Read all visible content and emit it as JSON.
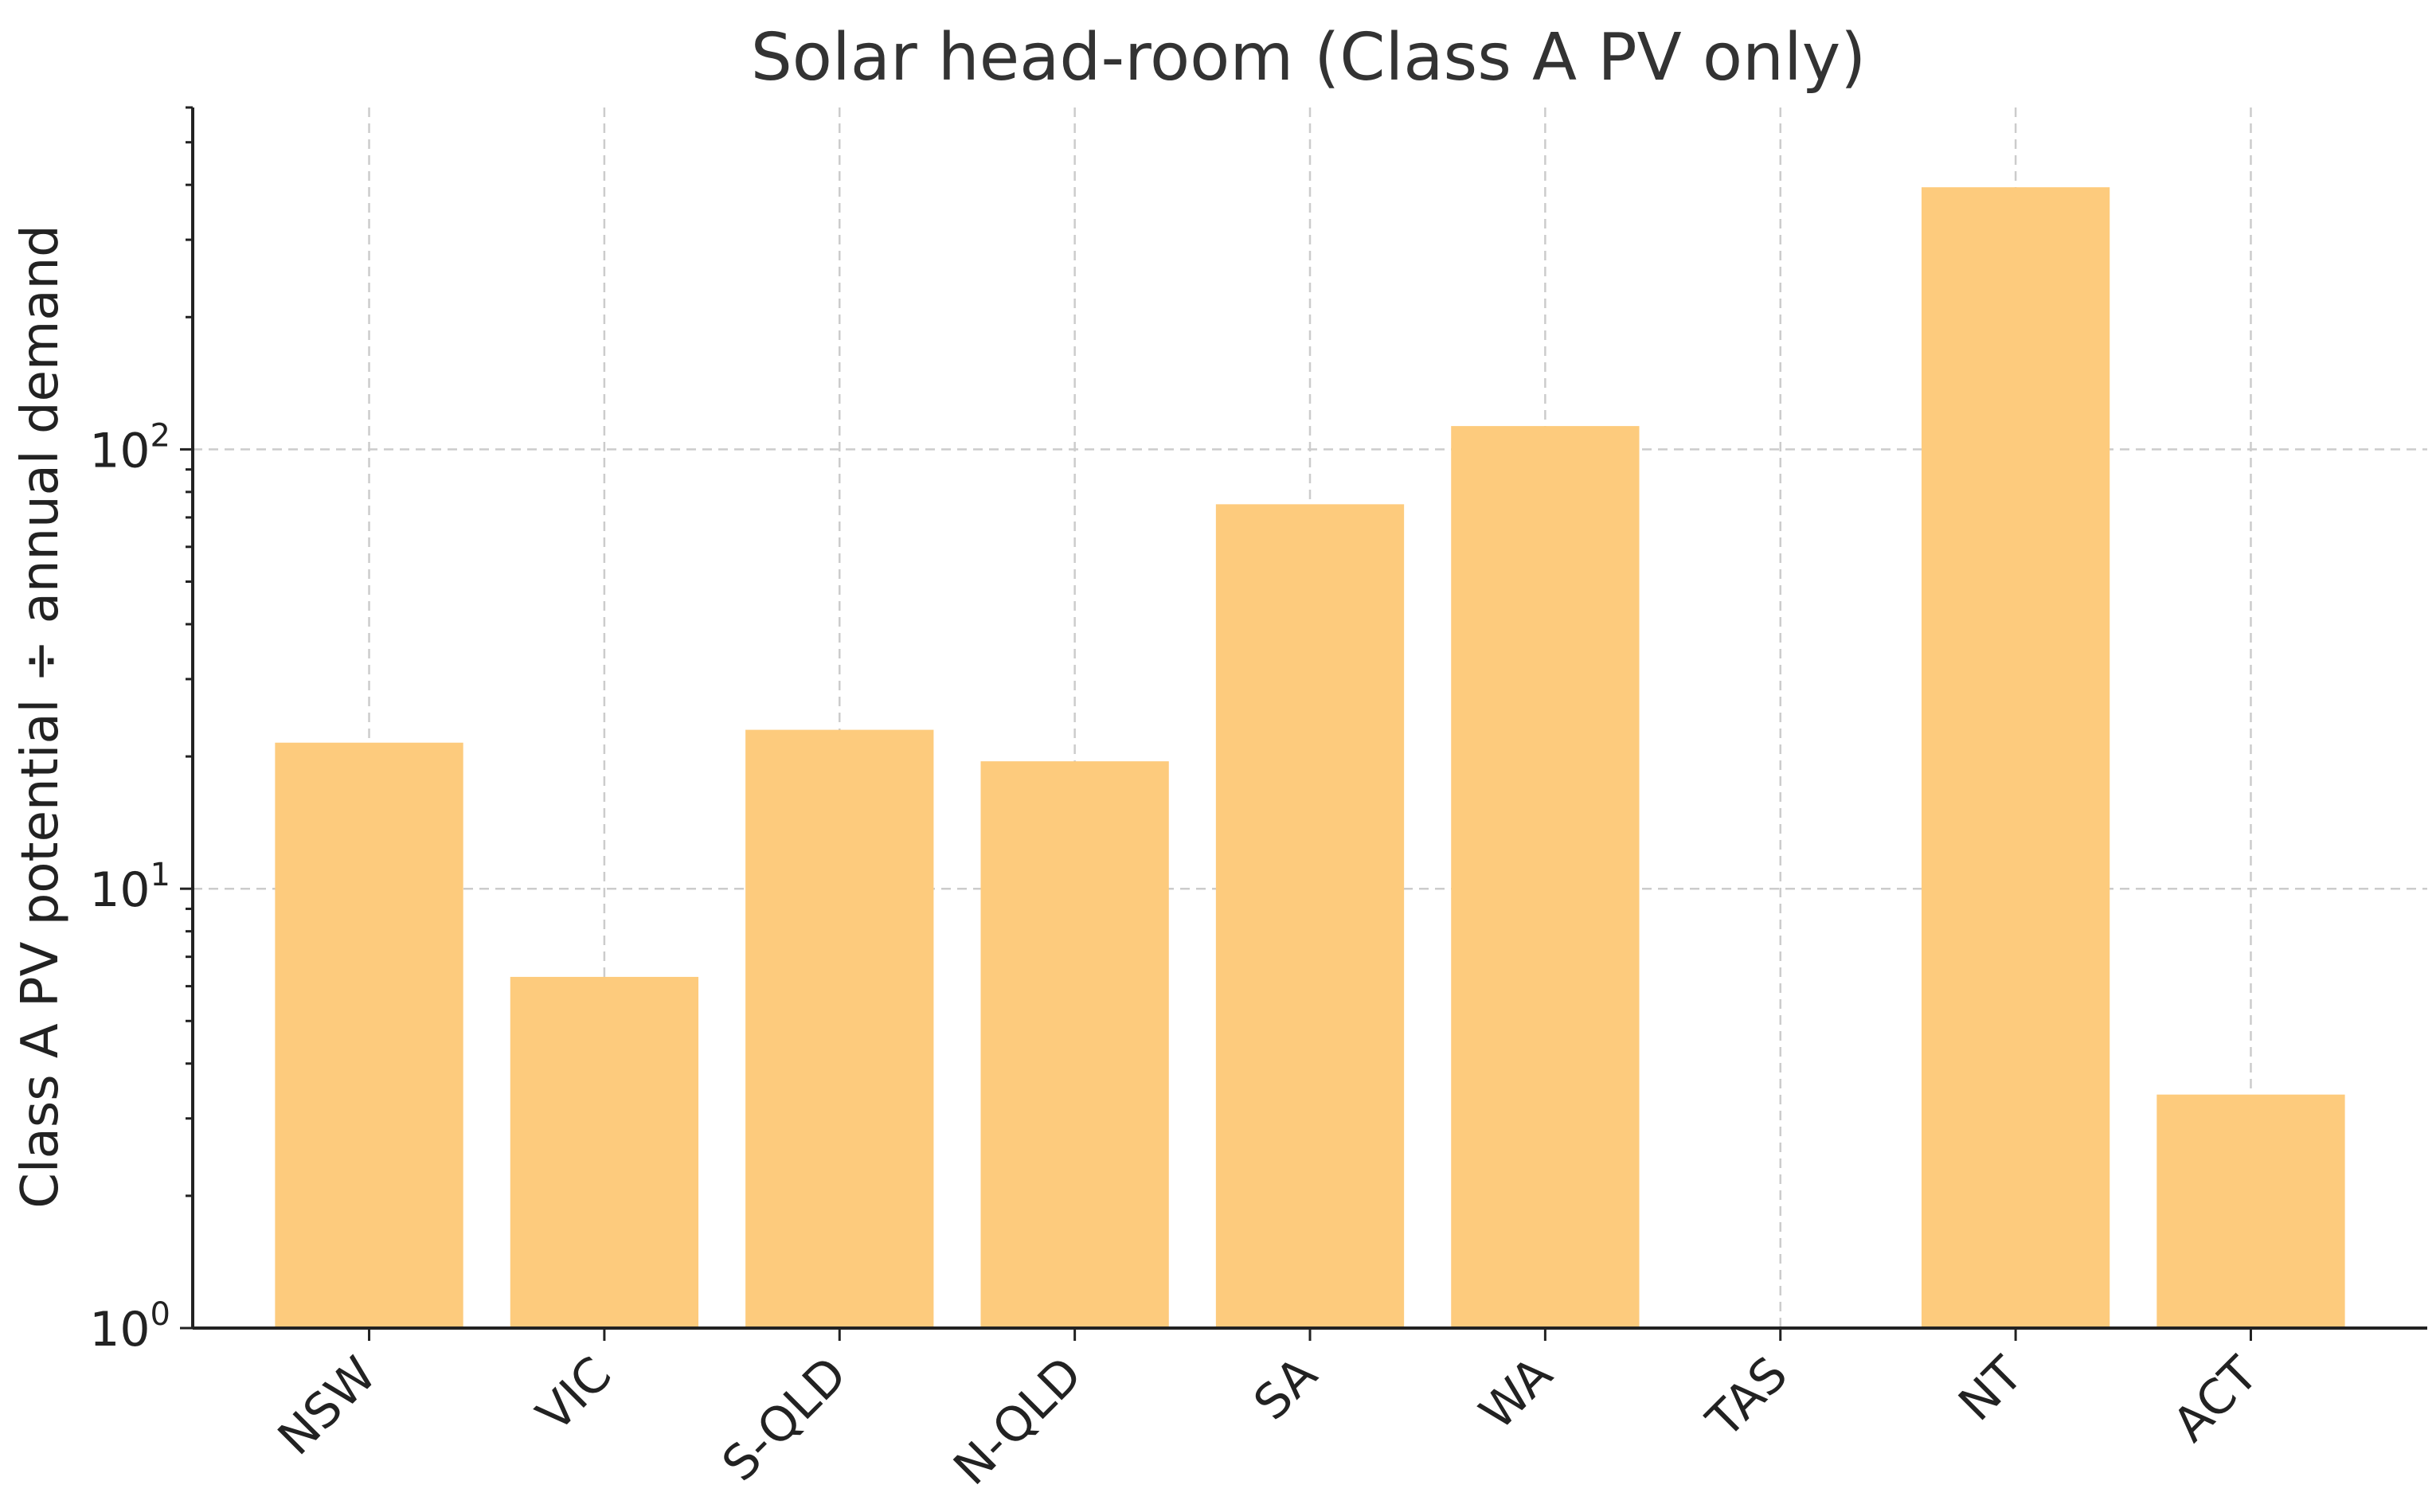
{
  "chart_data": {
    "type": "bar",
    "title": "Solar head-room (Class A PV only)",
    "xlabel": "",
    "ylabel": "Class A PV potential ÷ annual demand",
    "yscale": "log",
    "ylim": [
      1,
      600
    ],
    "yticks": [
      {
        "base": "10",
        "exp": "0"
      },
      {
        "base": "10",
        "exp": "1"
      },
      {
        "base": "10",
        "exp": "2"
      }
    ],
    "grid": true,
    "categories": [
      "NSW",
      "VIC",
      "S-QLD",
      "N-QLD",
      "SA",
      "WA",
      "TAS",
      "NT",
      "ACT"
    ],
    "values": [
      21.5,
      6.3,
      23,
      19.5,
      75,
      113,
      null,
      395,
      3.4
    ],
    "bar_color": "#fdcb7d"
  }
}
